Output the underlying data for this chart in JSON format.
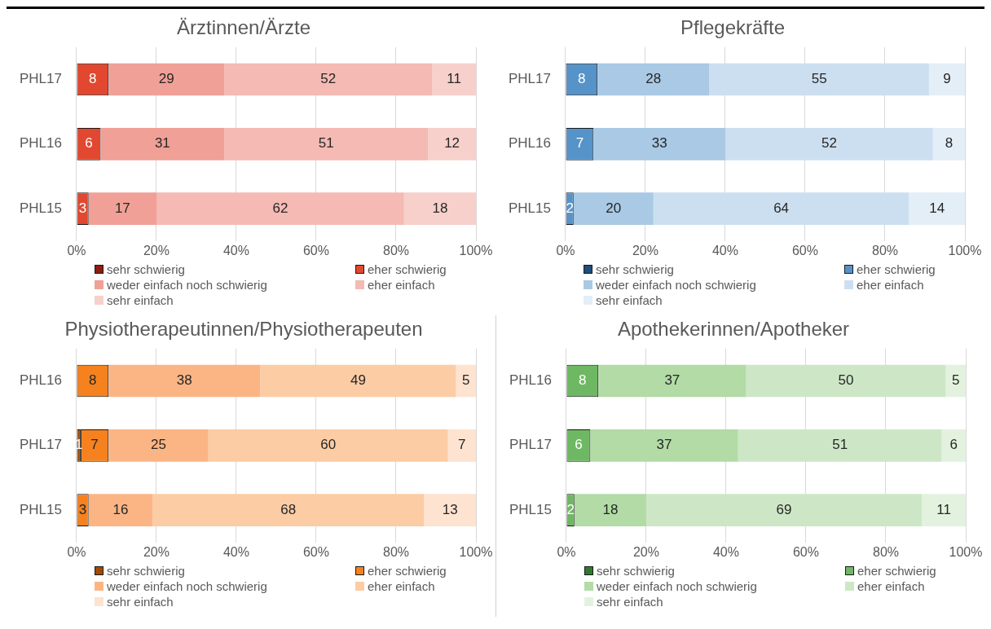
{
  "chart_data": [
    {
      "type": "bar",
      "title": "Ärztinnen/Ärzte",
      "orientation": "horizontal",
      "stacked": true,
      "categories": [
        "PHL17",
        "PHL16",
        "PHL15"
      ],
      "xlim": [
        0,
        100
      ],
      "xticks": [
        {
          "value": 0,
          "label": "0%"
        },
        {
          "value": 20,
          "label": "20%"
        },
        {
          "value": 40,
          "label": "40%"
        },
        {
          "value": 60,
          "label": "60%"
        },
        {
          "value": 80,
          "label": "80%"
        },
        {
          "value": 100,
          "label": "100%"
        }
      ],
      "grid": "x",
      "legend": "bottom",
      "data_labels": true,
      "series": [
        {
          "name": "sehr schwierig",
          "color": "#8b1d12",
          "values": [
            0,
            0,
            0
          ],
          "value_labels": [
            null,
            null,
            null
          ]
        },
        {
          "name": "eher schwierig",
          "color": "#e2472f",
          "values": [
            8,
            6,
            3
          ]
        },
        {
          "name": "weder einfach noch schwierig",
          "color": "#f0a096",
          "values": [
            29,
            31,
            17
          ]
        },
        {
          "name": "eher einfach",
          "color": "#f4bab3",
          "values": [
            52,
            51,
            62
          ]
        },
        {
          "name": "sehr einfach",
          "color": "#f7d0cb",
          "values": [
            11,
            12,
            18
          ]
        }
      ]
    },
    {
      "type": "bar",
      "title": "Pflegekräfte",
      "orientation": "horizontal",
      "stacked": true,
      "categories": [
        "PHL17",
        "PHL16",
        "PHL15"
      ],
      "xlim": [
        0,
        100
      ],
      "xticks": [
        {
          "value": 0,
          "label": "0%"
        },
        {
          "value": 20,
          "label": "20%"
        },
        {
          "value": 40,
          "label": "40%"
        },
        {
          "value": 60,
          "label": "60%"
        },
        {
          "value": 80,
          "label": "80%"
        },
        {
          "value": 100,
          "label": "100%"
        }
      ],
      "grid": "x",
      "legend": "bottom",
      "data_labels": true,
      "series": [
        {
          "name": "sehr schwierig",
          "color": "#1f4e79",
          "values": [
            0,
            0,
            0
          ],
          "value_labels": [
            null,
            null,
            null
          ]
        },
        {
          "name": "eher schwierig",
          "color": "#5693c9",
          "values": [
            8,
            7,
            2
          ]
        },
        {
          "name": "weder einfach noch schwierig",
          "color": "#a9c9e4",
          "values": [
            28,
            33,
            20
          ]
        },
        {
          "name": "eher einfach",
          "color": "#ccdff0",
          "values": [
            55,
            52,
            64
          ]
        },
        {
          "name": "sehr einfach",
          "color": "#e4eef7",
          "values": [
            9,
            8,
            14
          ]
        }
      ]
    },
    {
      "type": "bar",
      "title": "Physiotherapeutinnen/Physiotherapeuten",
      "orientation": "horizontal",
      "stacked": true,
      "categories": [
        "PHL16",
        "PHL17",
        "PHL15"
      ],
      "xlim": [
        0,
        100
      ],
      "xticks": [
        {
          "value": 0,
          "label": "0%"
        },
        {
          "value": 20,
          "label": "20%"
        },
        {
          "value": 40,
          "label": "40%"
        },
        {
          "value": 60,
          "label": "60%"
        },
        {
          "value": 80,
          "label": "80%"
        },
        {
          "value": 100,
          "label": "100%"
        }
      ],
      "grid": "x",
      "legend": "bottom",
      "data_labels": true,
      "series": [
        {
          "name": "sehr schwierig",
          "color": "#a04a05",
          "values": [
            0,
            1,
            0
          ],
          "value_labels": [
            null,
            "1",
            null
          ]
        },
        {
          "name": "eher schwierig",
          "color": "#f5821f",
          "values": [
            8,
            7,
            3
          ]
        },
        {
          "name": "weder einfach noch schwierig",
          "color": "#fbb584",
          "values": [
            38,
            25,
            16
          ]
        },
        {
          "name": "eher einfach",
          "color": "#fccca4",
          "values": [
            49,
            60,
            68
          ]
        },
        {
          "name": "sehr einfach",
          "color": "#fde3d0",
          "values": [
            5,
            7,
            13
          ]
        }
      ]
    },
    {
      "type": "bar",
      "title": "Apothekerinnen/Apotheker",
      "orientation": "horizontal",
      "stacked": true,
      "categories": [
        "PHL16",
        "PHL17",
        "PHL15"
      ],
      "xlim": [
        0,
        100
      ],
      "xticks": [
        {
          "value": 0,
          "label": "0%"
        },
        {
          "value": 20,
          "label": "20%"
        },
        {
          "value": 40,
          "label": "40%"
        },
        {
          "value": 60,
          "label": "60%"
        },
        {
          "value": 80,
          "label": "80%"
        },
        {
          "value": 100,
          "label": "100%"
        }
      ],
      "grid": "x",
      "legend": "bottom",
      "data_labels": true,
      "series": [
        {
          "name": "sehr schwierig",
          "color": "#2f7a2f",
          "values": [
            0,
            0,
            0
          ],
          "value_labels": [
            null,
            null,
            null
          ]
        },
        {
          "name": "eher schwierig",
          "color": "#6fb863",
          "values": [
            8,
            6,
            2
          ]
        },
        {
          "name": "weder einfach noch schwierig",
          "color": "#b2dba6",
          "values": [
            37,
            37,
            18
          ]
        },
        {
          "name": "eher einfach",
          "color": "#cde7c6",
          "values": [
            50,
            51,
            69
          ]
        },
        {
          "name": "sehr einfach",
          "color": "#e3f2df",
          "values": [
            5,
            6,
            11
          ]
        }
      ]
    }
  ]
}
